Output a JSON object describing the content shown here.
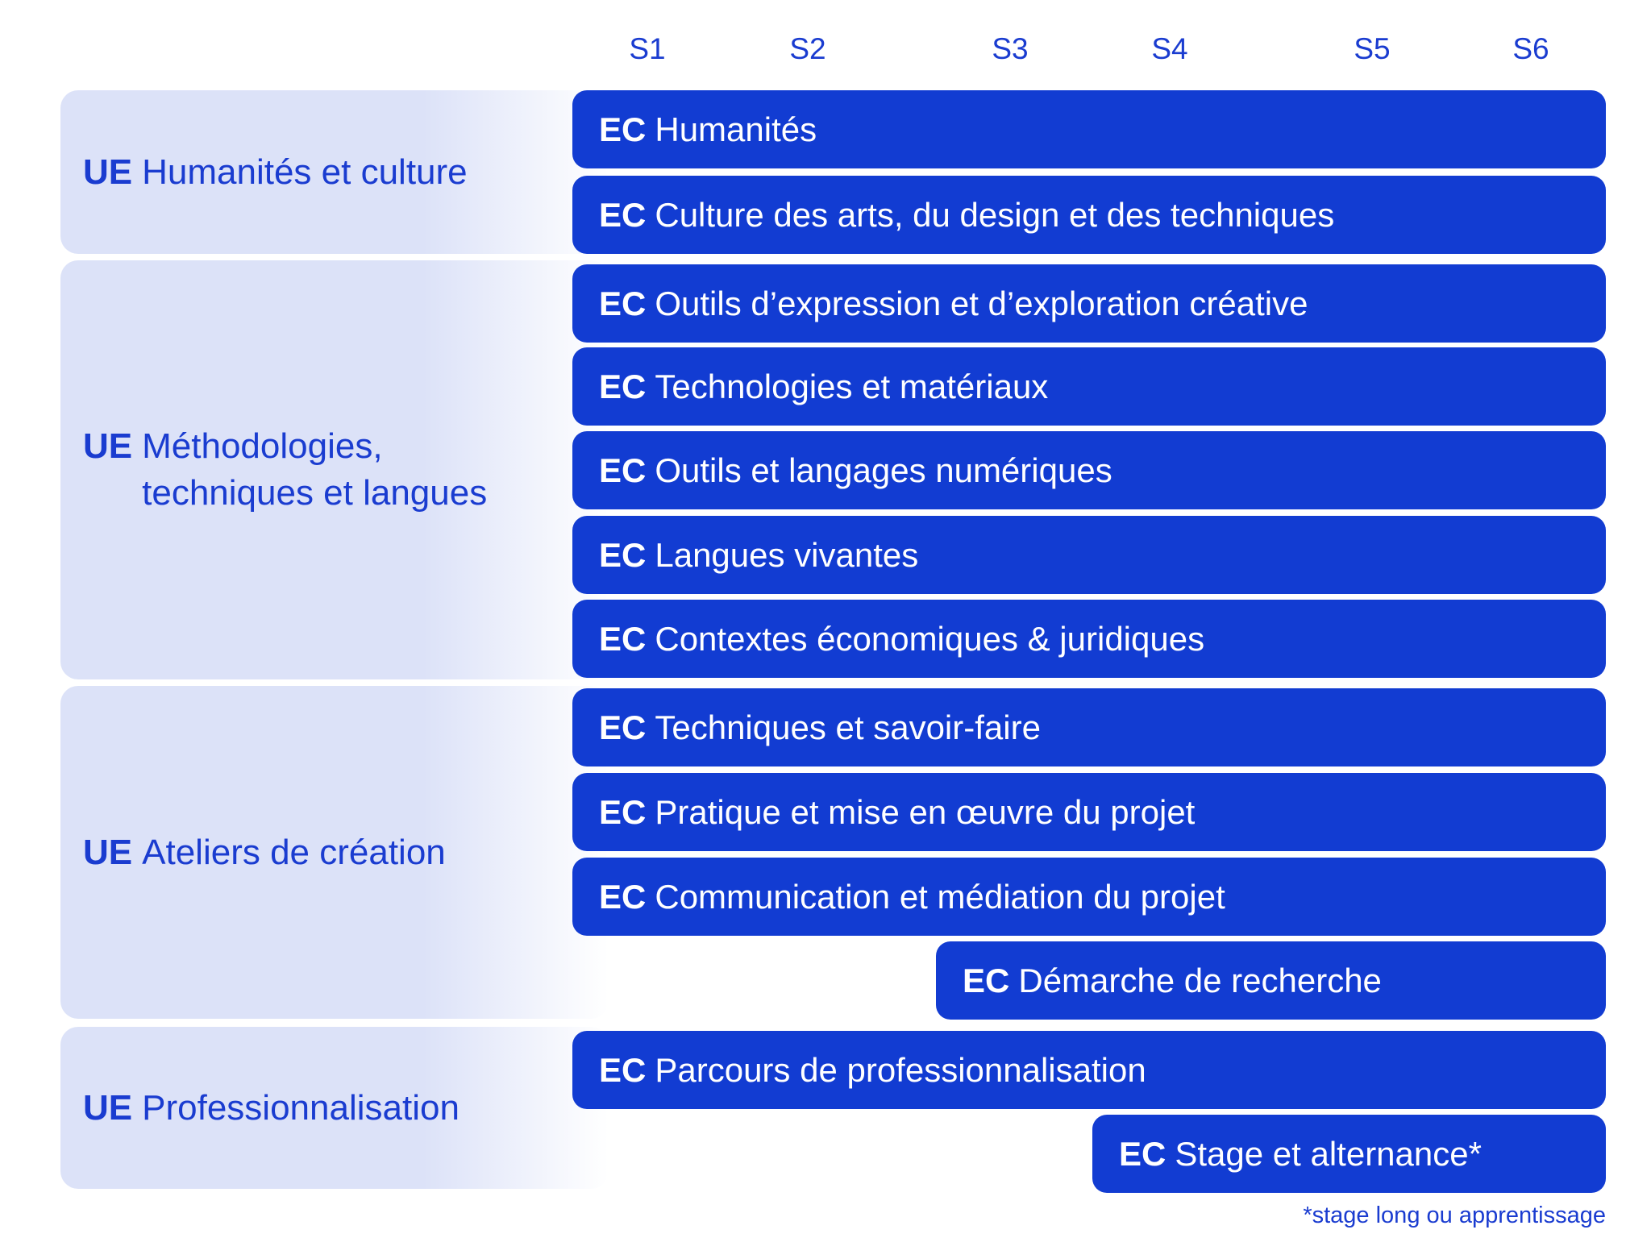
{
  "semesters": [
    "S1",
    "S2",
    "S3",
    "S4",
    "S5",
    "S6"
  ],
  "ue_prefix": "UE",
  "ec_prefix": "EC",
  "groups": [
    {
      "label_lines": [
        "Humanités et culture"
      ]
    },
    {
      "label_lines": [
        "Méthodologies,",
        "techniques et langues"
      ]
    },
    {
      "label_lines": [
        "Ateliers de création"
      ]
    },
    {
      "label_lines": [
        "Professionnalisation"
      ]
    }
  ],
  "courses": [
    {
      "group": 0,
      "label": "Humanités",
      "start_semester": 1,
      "end_semester": 6
    },
    {
      "group": 0,
      "label": "Culture des arts, du design et des techniques",
      "start_semester": 1,
      "end_semester": 6
    },
    {
      "group": 1,
      "label": "Outils d’expression et d’exploration créative",
      "start_semester": 1,
      "end_semester": 6
    },
    {
      "group": 1,
      "label": "Technologies et matériaux",
      "start_semester": 1,
      "end_semester": 6
    },
    {
      "group": 1,
      "label": "Outils et langages numériques",
      "start_semester": 1,
      "end_semester": 6
    },
    {
      "group": 1,
      "label": "Langues vivantes",
      "start_semester": 1,
      "end_semester": 6
    },
    {
      "group": 1,
      "label": "Contextes économiques & juridiques",
      "start_semester": 1,
      "end_semester": 6
    },
    {
      "group": 2,
      "label": "Techniques et savoir-faire",
      "start_semester": 1,
      "end_semester": 6
    },
    {
      "group": 2,
      "label": "Pratique et mise en œuvre du projet",
      "start_semester": 1,
      "end_semester": 6
    },
    {
      "group": 2,
      "label": "Communication et médiation du projet",
      "start_semester": 1,
      "end_semester": 6
    },
    {
      "group": 2,
      "label": "Démarche de recherche",
      "start_semester": 3,
      "end_semester": 6
    },
    {
      "group": 3,
      "label": "Parcours de professionnalisation",
      "start_semester": 1,
      "end_semester": 6
    },
    {
      "group": 3,
      "label": "Stage et alternance*",
      "start_semester": 4,
      "end_semester": 6
    }
  ],
  "footnote": "*stage long ou apprentissage",
  "colors": {
    "bar": "#123cd2",
    "text": "#1a3cd0",
    "panel": "#dce2f8"
  }
}
